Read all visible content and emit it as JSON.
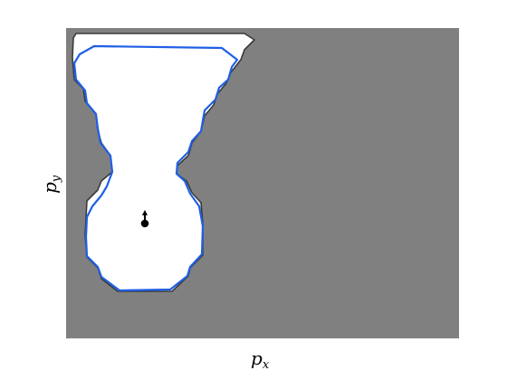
{
  "figure": {
    "x_label_main": "p",
    "x_label_sub": "x",
    "y_label_main": "p",
    "y_label_sub": "y"
  },
  "colors": {
    "background": "#808080",
    "free_region": "#ffffff",
    "true_boundary": "#3a3a3a",
    "estimated_boundary": "#1f5fe6",
    "agent": "#000000"
  }
}
